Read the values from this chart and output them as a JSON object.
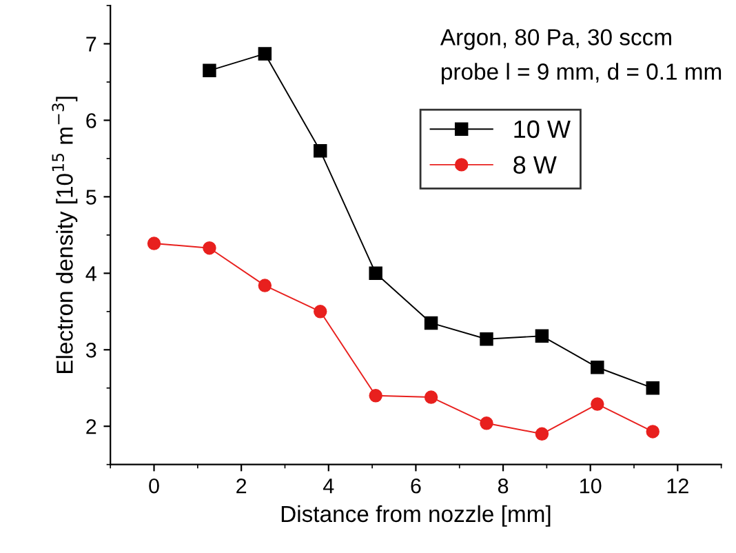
{
  "chart_data": {
    "type": "line",
    "xlabel": "Distance from nozzle [mm]",
    "ylabel": "Electron density [10$^{15}$ m$^{−3}$]",
    "annotations": [
      "Argon, 80 Pa, 30 sccm",
      "probe l = 9 mm, d = 0.1 mm"
    ],
    "xlim": [
      -1,
      13
    ],
    "xticks": [
      0,
      2,
      4,
      6,
      8,
      10,
      12
    ],
    "ylim": [
      1.5,
      7.5
    ],
    "yticks": [
      2,
      3,
      4,
      5,
      6,
      7
    ],
    "grid": false,
    "legend": "top right",
    "series": [
      {
        "name": "10 W",
        "color": "#000000",
        "marker": "square",
        "x": [
          1.27,
          2.54,
          3.81,
          5.08,
          6.35,
          7.62,
          8.89,
          10.16,
          11.43
        ],
        "values": [
          6.65,
          6.87,
          5.6,
          4.0,
          3.35,
          3.14,
          3.18,
          2.77,
          2.5
        ]
      },
      {
        "name": "8 W",
        "color": "#e8201e",
        "marker": "circle",
        "x": [
          0,
          1.27,
          2.54,
          3.81,
          5.08,
          6.35,
          7.62,
          8.89,
          10.16,
          11.43
        ],
        "values": [
          4.39,
          4.33,
          3.84,
          3.5,
          2.4,
          2.38,
          2.04,
          1.9,
          2.29,
          1.93
        ]
      }
    ]
  }
}
